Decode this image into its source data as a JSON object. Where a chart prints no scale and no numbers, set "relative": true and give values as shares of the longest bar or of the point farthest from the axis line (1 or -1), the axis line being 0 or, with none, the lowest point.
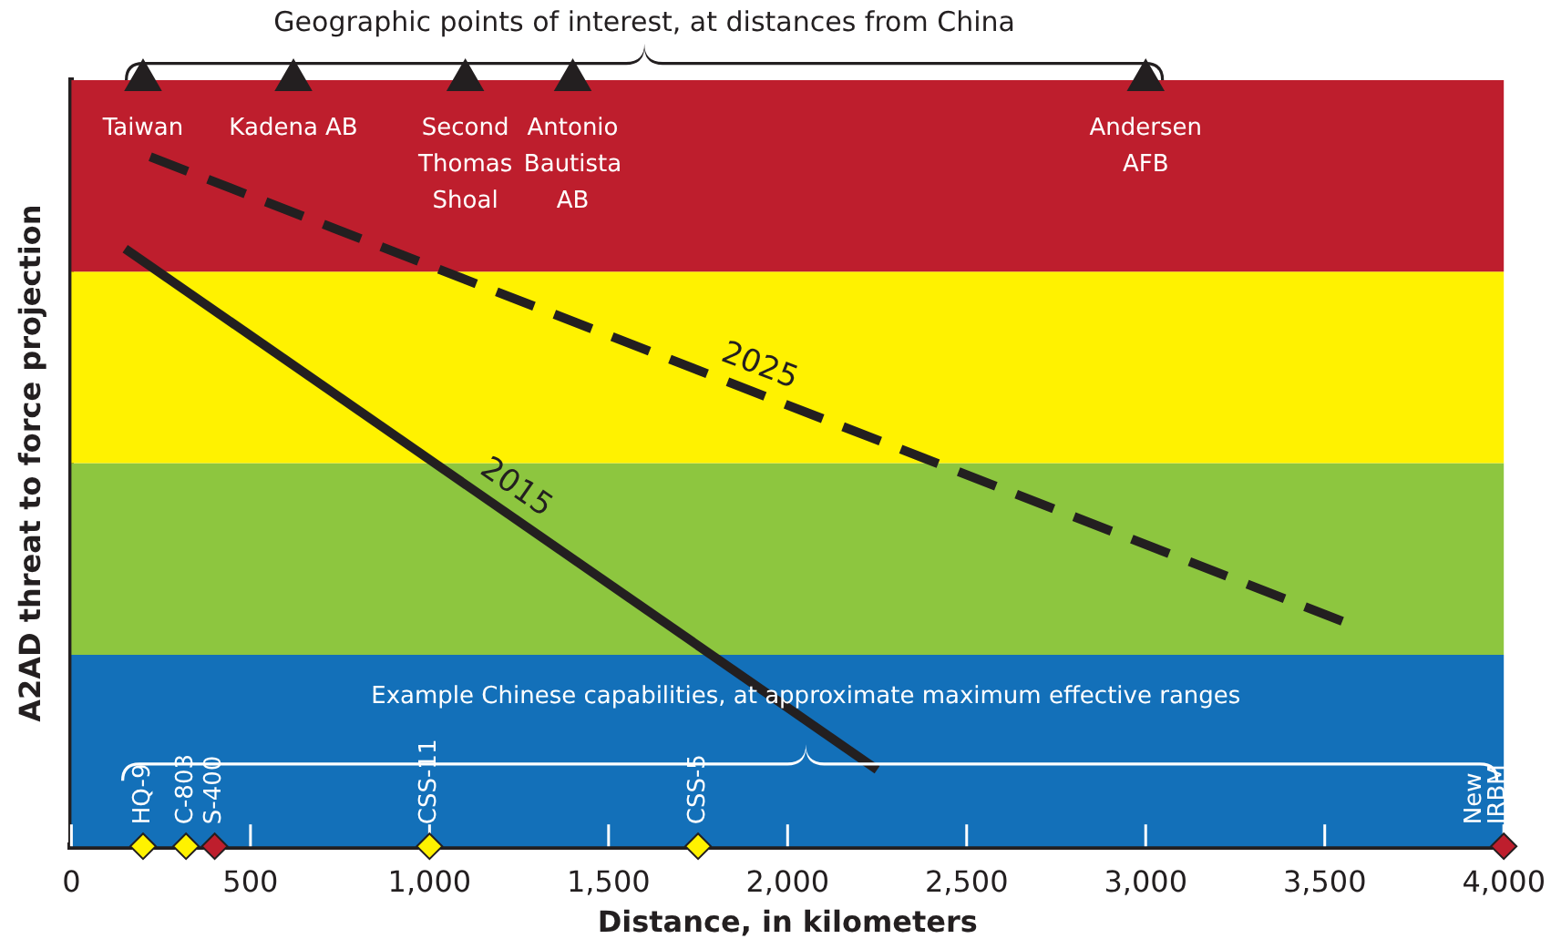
{
  "chart_data": {
    "type": "line",
    "title": "Geographic points of interest, at distances from China",
    "xlabel": "Distance, in kilometers",
    "ylabel": "A2AD threat to force projection",
    "relative": true,
    "xlim": [
      0,
      4000
    ],
    "xticks": [
      0,
      500,
      {
        "value": 1000,
        "label": "1,000"
      },
      {
        "value": 1500,
        "label": "1,500"
      },
      {
        "value": 2000,
        "label": "2,000"
      },
      {
        "value": 2500,
        "label": "2,500"
      },
      {
        "value": 3000,
        "label": "3,000"
      },
      {
        "value": 3500,
        "label": "3,500"
      },
      {
        "value": 4000,
        "label": "4,000"
      }
    ],
    "bands": [
      {
        "axis": "y",
        "from": 0,
        "to": 0.25,
        "color": "#1370b9"
      },
      {
        "axis": "y",
        "from": 0.25,
        "to": 0.5,
        "color": "#8dc63f"
      },
      {
        "axis": "y",
        "from": 0.5,
        "to": 0.75,
        "color": "#fff200"
      },
      {
        "axis": "y",
        "from": 0.75,
        "to": 1,
        "color": "#be1e2d"
      }
    ],
    "series": [
      {
        "name": "2025",
        "line_style": "dashed",
        "color": "#231f20",
        "x": [
          220,
          3570
        ],
        "values": [
          0.9,
          0.29
        ]
      },
      {
        "name": "2015",
        "line_style": "solid",
        "color": "#231f20",
        "x": [
          150,
          2250
        ],
        "values": [
          0.78,
          0.1
        ]
      },
      {
        "type": "scatter",
        "marker": "triangle",
        "color": "#231f20",
        "x": [
          200,
          620,
          1100,
          1400,
          3000
        ],
        "values": [
          1,
          1,
          1,
          1,
          1
        ]
      },
      {
        "type": "scatter",
        "marker": "diamond",
        "colors": [
          "#fff200",
          "#fff200",
          "#be1e2d",
          "#fff200",
          "#fff200",
          "#be1e2d"
        ],
        "x": [
          200,
          320,
          400,
          1000,
          1750,
          4000
        ],
        "values": [
          0,
          0,
          0,
          0,
          0,
          0
        ]
      }
    ],
    "annotations": [
      "Example Chinese capabilities, at approximate maximum effective ranges",
      {
        "text": "Taiwan",
        "x": 200,
        "y": 1
      },
      {
        "text": "Kadena AB",
        "x": 620,
        "y": 1
      },
      {
        "text": "Second\nThomas\nShoal",
        "x": 1100,
        "y": 1
      },
      {
        "text": "Antonio\nBautista\nAB",
        "x": 1400,
        "y": 1
      },
      {
        "text": "Andersen\nAFB",
        "x": 3000,
        "y": 1
      },
      {
        "text": "HQ-9",
        "x": 200,
        "y": 0
      },
      {
        "text": "C-803",
        "x": 320,
        "y": 0
      },
      {
        "text": "S-400",
        "x": 400,
        "y": 0
      },
      {
        "text": "CSS-11",
        "x": 1000,
        "y": 0
      },
      {
        "text": "CSS-5",
        "x": 1750,
        "y": 0
      },
      {
        "text": "New\nIRBM",
        "x": 4000,
        "y": 0
      }
    ]
  }
}
